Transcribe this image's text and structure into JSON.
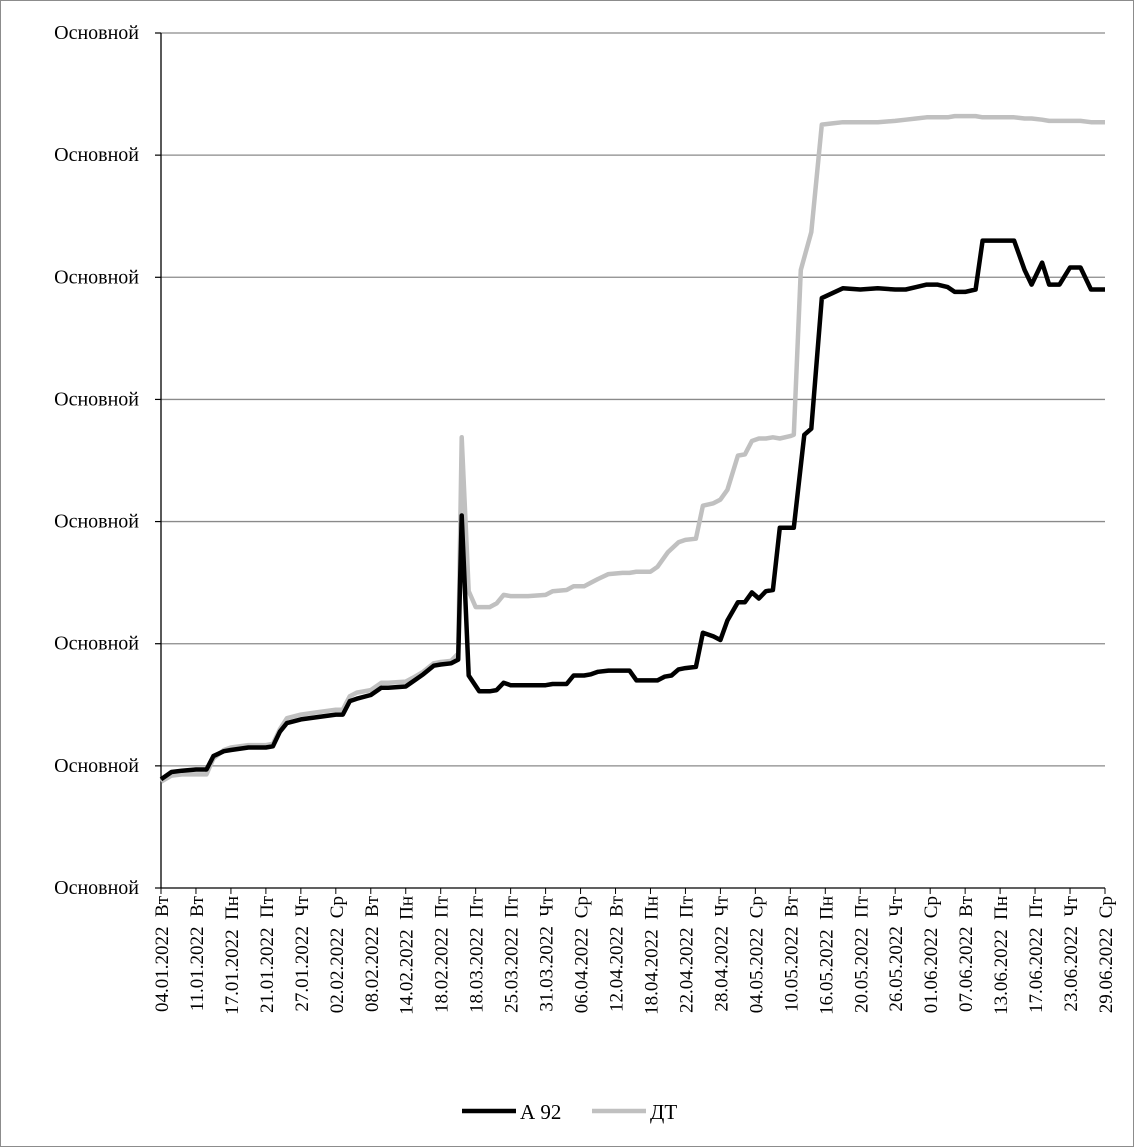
{
  "chart_data": {
    "type": "line",
    "title": "",
    "xlabel": "",
    "ylabel": "",
    "y_tick_labels": [
      "Основной",
      "Основной",
      "Основной",
      "Основной",
      "Основной",
      "Основной",
      "Основной",
      "Основной"
    ],
    "ylim": [
      0,
      7
    ],
    "grid": true,
    "legend_position": "bottom",
    "x_tick_labels": [
      "04.01.2022  Вт",
      "11.01.2022  Вт",
      "17.01.2022  Пн",
      "21.01.2022  Пт",
      "27.01.2022  Чт",
      "02.02.2022  Ср",
      "08.02.2022  Вт",
      "14.02.2022  Пн",
      "18.02.2022  Пт",
      "18.03.2022  Пт",
      "25.03.2022  Пт",
      "31.03.2022  Чт",
      "06.04.2022  Ср",
      "12.04.2022  Вт",
      "18.04.2022  Пн",
      "22.04.2022  Пт",
      "28.04.2022  Чт",
      "04.05.2022  Ср",
      "10.05.2022  Вт",
      "16.05.2022  Пн",
      "20.05.2022  Пт",
      "26.05.2022  Чт",
      "01.06.2022  Ср",
      "07.06.2022  Вт",
      "13.06.2022  Пн",
      "17.06.2022  Пт",
      "23.06.2022  Чт",
      "29.06.2022  Ср"
    ],
    "series": [
      {
        "name": "А 92",
        "color": "#000000",
        "points": [
          [
            0,
            0.89
          ],
          [
            0.3,
            0.95
          ],
          [
            0.6,
            0.96
          ],
          [
            1,
            0.97
          ],
          [
            1.3,
            0.97
          ],
          [
            1.5,
            1.08
          ],
          [
            1.8,
            1.12
          ],
          [
            2,
            1.13
          ],
          [
            2.5,
            1.15
          ],
          [
            3,
            1.15
          ],
          [
            3.2,
            1.16
          ],
          [
            3.4,
            1.28
          ],
          [
            3.6,
            1.35
          ],
          [
            4,
            1.38
          ],
          [
            4.5,
            1.4
          ],
          [
            5,
            1.42
          ],
          [
            5.2,
            1.42
          ],
          [
            5.4,
            1.53
          ],
          [
            5.6,
            1.55
          ],
          [
            6,
            1.58
          ],
          [
            6.3,
            1.64
          ],
          [
            6.5,
            1.64
          ],
          [
            7,
            1.65
          ],
          [
            7.2,
            1.69
          ],
          [
            7.5,
            1.75
          ],
          [
            7.8,
            1.82
          ],
          [
            8,
            1.83
          ],
          [
            8.3,
            1.84
          ],
          [
            8.5,
            1.87
          ],
          [
            8.6,
            3.05
          ],
          [
            8.8,
            1.74
          ],
          [
            9.1,
            1.61
          ],
          [
            9.4,
            1.61
          ],
          [
            9.6,
            1.62
          ],
          [
            9.8,
            1.68
          ],
          [
            10,
            1.66
          ],
          [
            10.5,
            1.66
          ],
          [
            11,
            1.66
          ],
          [
            11.2,
            1.67
          ],
          [
            11.6,
            1.67
          ],
          [
            11.8,
            1.74
          ],
          [
            12.1,
            1.74
          ],
          [
            12.3,
            1.75
          ],
          [
            12.5,
            1.77
          ],
          [
            12.8,
            1.78
          ],
          [
            13.2,
            1.78
          ],
          [
            13.4,
            1.78
          ],
          [
            13.6,
            1.7
          ],
          [
            14,
            1.7
          ],
          [
            14.2,
            1.7
          ],
          [
            14.4,
            1.73
          ],
          [
            14.6,
            1.74
          ],
          [
            14.8,
            1.79
          ],
          [
            15,
            1.8
          ],
          [
            15.3,
            1.81
          ],
          [
            15.5,
            2.09
          ],
          [
            15.8,
            2.06
          ],
          [
            16,
            2.03
          ],
          [
            16.2,
            2.19
          ],
          [
            16.5,
            2.34
          ],
          [
            16.7,
            2.34
          ],
          [
            16.9,
            2.42
          ],
          [
            17.1,
            2.37
          ],
          [
            17.3,
            2.43
          ],
          [
            17.5,
            2.44
          ],
          [
            17.7,
            2.95
          ],
          [
            18,
            2.95
          ],
          [
            18.1,
            2.95
          ],
          [
            18.4,
            3.71
          ],
          [
            18.6,
            3.76
          ],
          [
            18.9,
            4.83
          ],
          [
            19.2,
            4.87
          ],
          [
            19.5,
            4.91
          ],
          [
            20,
            4.9
          ],
          [
            20.5,
            4.91
          ],
          [
            21,
            4.9
          ],
          [
            21.3,
            4.9
          ],
          [
            21.6,
            4.92
          ],
          [
            21.9,
            4.94
          ],
          [
            22.2,
            4.94
          ],
          [
            22.5,
            4.92
          ],
          [
            22.7,
            4.88
          ],
          [
            23,
            4.88
          ],
          [
            23.3,
            4.9
          ],
          [
            23.5,
            5.3
          ],
          [
            24,
            5.3
          ],
          [
            24.4,
            5.3
          ],
          [
            24.7,
            5.06
          ],
          [
            24.9,
            4.94
          ],
          [
            25.2,
            5.12
          ],
          [
            25.4,
            4.94
          ],
          [
            25.7,
            4.94
          ],
          [
            26,
            5.08
          ],
          [
            26.3,
            5.08
          ],
          [
            26.6,
            4.9
          ],
          [
            27,
            4.9
          ]
        ]
      },
      {
        "name": "ДТ",
        "color": "#c0c0c0",
        "points": [
          [
            0,
            0.87
          ],
          [
            0.3,
            0.92
          ],
          [
            0.6,
            0.93
          ],
          [
            1,
            0.93
          ],
          [
            1.3,
            0.93
          ],
          [
            1.5,
            1.06
          ],
          [
            1.8,
            1.13
          ],
          [
            2,
            1.15
          ],
          [
            2.5,
            1.17
          ],
          [
            3,
            1.17
          ],
          [
            3.2,
            1.18
          ],
          [
            3.4,
            1.3
          ],
          [
            3.6,
            1.39
          ],
          [
            4,
            1.42
          ],
          [
            4.5,
            1.44
          ],
          [
            5,
            1.46
          ],
          [
            5.2,
            1.46
          ],
          [
            5.4,
            1.57
          ],
          [
            5.6,
            1.6
          ],
          [
            6,
            1.62
          ],
          [
            6.3,
            1.68
          ],
          [
            6.5,
            1.68
          ],
          [
            7,
            1.69
          ],
          [
            7.2,
            1.72
          ],
          [
            7.5,
            1.77
          ],
          [
            7.8,
            1.84
          ],
          [
            8,
            1.85
          ],
          [
            8.3,
            1.86
          ],
          [
            8.5,
            1.92
          ],
          [
            8.6,
            3.69
          ],
          [
            8.8,
            2.43
          ],
          [
            9,
            2.3
          ],
          [
            9.4,
            2.3
          ],
          [
            9.6,
            2.33
          ],
          [
            9.8,
            2.4
          ],
          [
            10,
            2.39
          ],
          [
            10.5,
            2.39
          ],
          [
            11,
            2.4
          ],
          [
            11.2,
            2.43
          ],
          [
            11.6,
            2.44
          ],
          [
            11.8,
            2.47
          ],
          [
            12.1,
            2.47
          ],
          [
            12.3,
            2.5
          ],
          [
            12.5,
            2.53
          ],
          [
            12.8,
            2.57
          ],
          [
            13.2,
            2.58
          ],
          [
            13.4,
            2.58
          ],
          [
            13.6,
            2.59
          ],
          [
            14,
            2.59
          ],
          [
            14.2,
            2.63
          ],
          [
            14.5,
            2.75
          ],
          [
            14.8,
            2.83
          ],
          [
            15,
            2.85
          ],
          [
            15.3,
            2.86
          ],
          [
            15.5,
            3.13
          ],
          [
            15.8,
            3.15
          ],
          [
            16,
            3.18
          ],
          [
            16.2,
            3.26
          ],
          [
            16.5,
            3.54
          ],
          [
            16.7,
            3.55
          ],
          [
            16.9,
            3.66
          ],
          [
            17.1,
            3.68
          ],
          [
            17.3,
            3.68
          ],
          [
            17.5,
            3.69
          ],
          [
            17.7,
            3.68
          ],
          [
            18,
            3.7
          ],
          [
            18.1,
            3.71
          ],
          [
            18.3,
            5.06
          ],
          [
            18.6,
            5.37
          ],
          [
            18.9,
            6.25
          ],
          [
            19.2,
            6.26
          ],
          [
            19.5,
            6.27
          ],
          [
            20,
            6.27
          ],
          [
            20.5,
            6.27
          ],
          [
            21,
            6.28
          ],
          [
            21.3,
            6.29
          ],
          [
            21.6,
            6.3
          ],
          [
            21.9,
            6.31
          ],
          [
            22.2,
            6.31
          ],
          [
            22.5,
            6.31
          ],
          [
            22.7,
            6.32
          ],
          [
            23,
            6.32
          ],
          [
            23.3,
            6.32
          ],
          [
            23.5,
            6.31
          ],
          [
            24,
            6.31
          ],
          [
            24.4,
            6.31
          ],
          [
            24.7,
            6.3
          ],
          [
            24.9,
            6.3
          ],
          [
            25.2,
            6.29
          ],
          [
            25.4,
            6.28
          ],
          [
            25.7,
            6.28
          ],
          [
            26,
            6.28
          ],
          [
            26.3,
            6.28
          ],
          [
            26.6,
            6.27
          ],
          [
            27,
            6.27
          ]
        ]
      }
    ]
  }
}
